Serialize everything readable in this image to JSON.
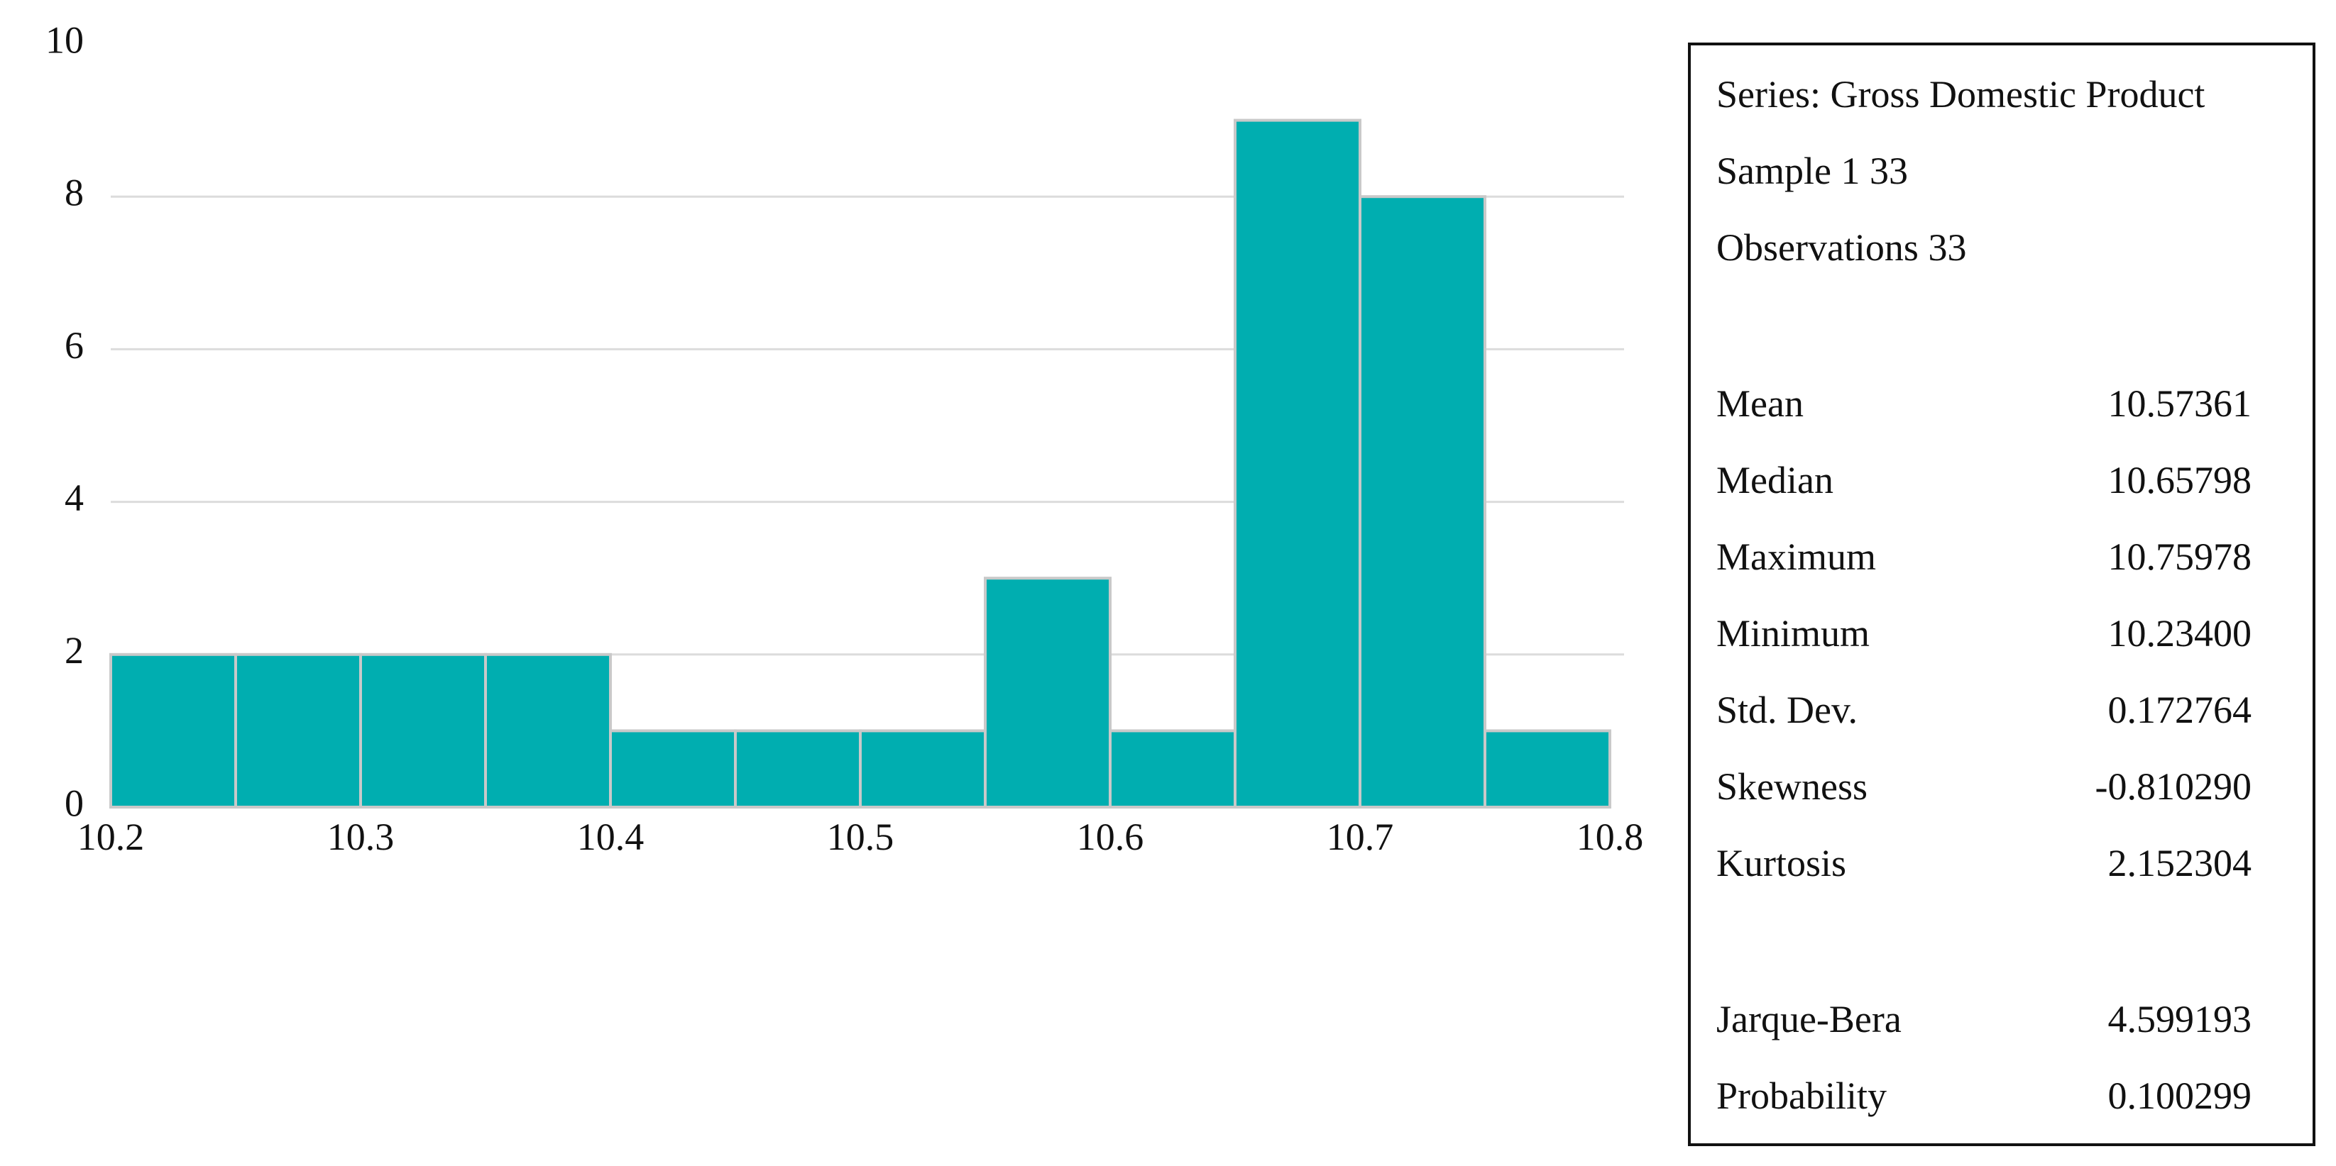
{
  "chart_data": {
    "type": "bar",
    "title": "",
    "xlabel": "",
    "ylabel": "",
    "bin_edges": [
      10.2,
      10.25,
      10.3,
      10.35,
      10.4,
      10.45,
      10.5,
      10.55,
      10.6,
      10.65,
      10.7,
      10.75,
      10.8
    ],
    "values": [
      2,
      2,
      2,
      2,
      1,
      1,
      1,
      3,
      1,
      9,
      8,
      1
    ],
    "xlim": [
      10.2,
      10.8
    ],
    "ylim": [
      0,
      10
    ],
    "x_ticks": [
      "10.2",
      "10.3",
      "10.4",
      "10.5",
      "10.6",
      "10.7",
      "10.8"
    ],
    "y_ticks": [
      "0",
      "2",
      "4",
      "6",
      "8",
      "10"
    ],
    "grid": true,
    "bar_color": "#00aeb0"
  },
  "stats": {
    "series_line": "Series: Gross Domestic Product",
    "sample_line": "Sample 1 33",
    "observations_line": "Observations 33",
    "rows": [
      {
        "label": "Mean",
        "value": "10.57361"
      },
      {
        "label": "Median",
        "value": "10.65798"
      },
      {
        "label": "Maximum",
        "value": "10.75978"
      },
      {
        "label": "Minimum",
        "value": "10.23400"
      },
      {
        "label": "Std. Dev.",
        "value": "0.172764"
      },
      {
        "label": "Skewness",
        "value": "-0.810290"
      },
      {
        "label": "Kurtosis",
        "value": "2.152304"
      }
    ],
    "test_rows": [
      {
        "label": "Jarque-Bera",
        "value": "4.599193"
      },
      {
        "label": "Probability",
        "value": "0.100299"
      }
    ]
  }
}
